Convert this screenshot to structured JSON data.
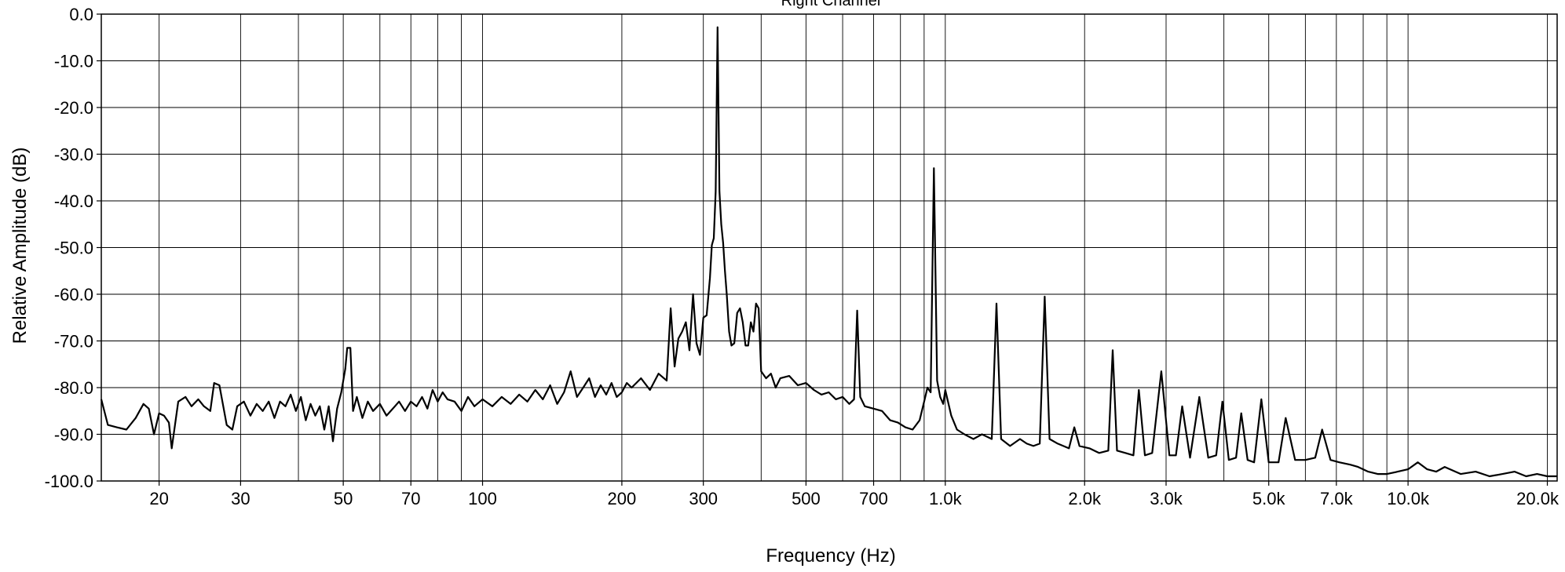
{
  "chart_data": {
    "type": "line",
    "title": "Right Channel",
    "xlabel": "Frequency (Hz)",
    "ylabel": "Relative Amplitude (dB)",
    "x_scale": "log",
    "xlim": [
      15,
      21000
    ],
    "ylim": [
      -100,
      0
    ],
    "grid": true,
    "legend": "none",
    "line_color": "#000000",
    "grid_color": "#000000",
    "y_ticks": [
      0,
      -10,
      -20,
      -30,
      -40,
      -50,
      -60,
      -70,
      -80,
      -90,
      -100
    ],
    "y_tick_labels": [
      "0.0",
      "-10.0",
      "-20.0",
      "-30.0",
      "-40.0",
      "-50.0",
      "-60.0",
      "-70.0",
      "-80.0",
      "-90.0",
      "-100.0"
    ],
    "x_labeled_ticks": [
      20,
      30,
      50,
      70,
      100,
      200,
      300,
      500,
      700,
      1000,
      2000,
      3000,
      5000,
      7000,
      10000,
      20000
    ],
    "x_tick_labels": [
      "20",
      "30",
      "50",
      "70",
      "100",
      "200",
      "300",
      "500",
      "700",
      "1.0k",
      "2.0k",
      "3.0k",
      "5.0k",
      "7.0k",
      "10.0k",
      "20.0k"
    ],
    "x_minor_gridlines": [
      40,
      60,
      80,
      90,
      400,
      600,
      800,
      900,
      4000,
      6000,
      8000,
      9000
    ],
    "series": [
      {
        "points": [
          [
            15,
            -82.5
          ],
          [
            15.5,
            -88
          ],
          [
            16.2,
            -88.5
          ],
          [
            17,
            -89
          ],
          [
            17.8,
            -86.5
          ],
          [
            18.5,
            -83.5
          ],
          [
            19,
            -84.5
          ],
          [
            19.5,
            -90
          ],
          [
            20,
            -85.5
          ],
          [
            20.5,
            -86
          ],
          [
            21,
            -87.5
          ],
          [
            21.3,
            -93
          ],
          [
            22,
            -83
          ],
          [
            22.8,
            -82
          ],
          [
            23.5,
            -84
          ],
          [
            24.3,
            -82.5
          ],
          [
            25,
            -84
          ],
          [
            25.8,
            -85
          ],
          [
            26.3,
            -79
          ],
          [
            27,
            -79.5
          ],
          [
            28,
            -88
          ],
          [
            28.8,
            -89
          ],
          [
            29.5,
            -84
          ],
          [
            30.5,
            -83
          ],
          [
            31.5,
            -86
          ],
          [
            32.5,
            -83.5
          ],
          [
            33.5,
            -85
          ],
          [
            34.5,
            -83
          ],
          [
            35.5,
            -86.5
          ],
          [
            36.5,
            -83
          ],
          [
            37.5,
            -84
          ],
          [
            38.5,
            -81.5
          ],
          [
            39.5,
            -85
          ],
          [
            40.5,
            -82
          ],
          [
            41.5,
            -87
          ],
          [
            42.5,
            -83.5
          ],
          [
            43.5,
            -86
          ],
          [
            44.5,
            -84
          ],
          [
            45.5,
            -89
          ],
          [
            46.5,
            -84
          ],
          [
            47.5,
            -91.5
          ],
          [
            48.5,
            -84.5
          ],
          [
            49.5,
            -81
          ],
          [
            50.5,
            -76
          ],
          [
            51,
            -71.5
          ],
          [
            51.8,
            -71.5
          ],
          [
            52.5,
            -85
          ],
          [
            53.5,
            -82
          ],
          [
            55,
            -86.5
          ],
          [
            56.5,
            -83
          ],
          [
            58,
            -85
          ],
          [
            60,
            -83.5
          ],
          [
            62,
            -86
          ],
          [
            64,
            -84.5
          ],
          [
            66,
            -83
          ],
          [
            68,
            -85
          ],
          [
            70,
            -83
          ],
          [
            72,
            -84
          ],
          [
            74,
            -82
          ],
          [
            76,
            -84.5
          ],
          [
            78,
            -80.5
          ],
          [
            80,
            -83
          ],
          [
            82,
            -81
          ],
          [
            84,
            -82.5
          ],
          [
            87,
            -83
          ],
          [
            90,
            -85
          ],
          [
            93,
            -82
          ],
          [
            96,
            -84
          ],
          [
            100,
            -82.5
          ],
          [
            105,
            -84
          ],
          [
            110,
            -82
          ],
          [
            115,
            -83.5
          ],
          [
            120,
            -81.5
          ],
          [
            125,
            -83
          ],
          [
            130,
            -80.5
          ],
          [
            135,
            -82.5
          ],
          [
            140,
            -79.5
          ],
          [
            145,
            -83.5
          ],
          [
            150,
            -81
          ],
          [
            155,
            -76.5
          ],
          [
            160,
            -82
          ],
          [
            165,
            -80
          ],
          [
            170,
            -78
          ],
          [
            175,
            -82
          ],
          [
            180,
            -79.5
          ],
          [
            185,
            -81.5
          ],
          [
            190,
            -79
          ],
          [
            195,
            -82
          ],
          [
            200,
            -81
          ],
          [
            205,
            -79
          ],
          [
            210,
            -80
          ],
          [
            220,
            -78
          ],
          [
            230,
            -80.5
          ],
          [
            240,
            -77
          ],
          [
            250,
            -78.5
          ],
          [
            255,
            -63
          ],
          [
            260,
            -75.5
          ],
          [
            265,
            -69.5
          ],
          [
            270,
            -68
          ],
          [
            275,
            -66
          ],
          [
            280,
            -72
          ],
          [
            285,
            -60
          ],
          [
            290,
            -70.5
          ],
          [
            295,
            -73
          ],
          [
            300,
            -65
          ],
          [
            305,
            -64.5
          ],
          [
            310,
            -56.5
          ],
          [
            313,
            -49.5
          ],
          [
            316,
            -48
          ],
          [
            319,
            -38
          ],
          [
            322,
            -2.8
          ],
          [
            325,
            -38
          ],
          [
            328,
            -45
          ],
          [
            331,
            -49
          ],
          [
            334,
            -55
          ],
          [
            337,
            -60
          ],
          [
            341,
            -68
          ],
          [
            345,
            -71
          ],
          [
            350,
            -70.5
          ],
          [
            355,
            -64
          ],
          [
            360,
            -63
          ],
          [
            365,
            -66
          ],
          [
            370,
            -71
          ],
          [
            375,
            -71
          ],
          [
            380,
            -66
          ],
          [
            385,
            -68
          ],
          [
            390,
            -62
          ],
          [
            395,
            -63
          ],
          [
            400,
            -76.5
          ],
          [
            410,
            -78
          ],
          [
            420,
            -77
          ],
          [
            430,
            -80
          ],
          [
            440,
            -78
          ],
          [
            460,
            -77.5
          ],
          [
            480,
            -79.5
          ],
          [
            500,
            -79
          ],
          [
            520,
            -80.5
          ],
          [
            540,
            -81.5
          ],
          [
            560,
            -81
          ],
          [
            580,
            -82.5
          ],
          [
            600,
            -82
          ],
          [
            620,
            -83.5
          ],
          [
            635,
            -82.5
          ],
          [
            645,
            -63.5
          ],
          [
            655,
            -82
          ],
          [
            670,
            -84
          ],
          [
            700,
            -84.5
          ],
          [
            730,
            -85
          ],
          [
            760,
            -87
          ],
          [
            790,
            -87.5
          ],
          [
            820,
            -88.5
          ],
          [
            850,
            -89
          ],
          [
            880,
            -87
          ],
          [
            900,
            -83
          ],
          [
            915,
            -80
          ],
          [
            930,
            -81
          ],
          [
            945,
            -33
          ],
          [
            960,
            -78.5
          ],
          [
            975,
            -82
          ],
          [
            990,
            -83.5
          ],
          [
            1000,
            -80.5
          ],
          [
            1030,
            -86
          ],
          [
            1060,
            -89
          ],
          [
            1100,
            -90
          ],
          [
            1150,
            -91
          ],
          [
            1200,
            -90
          ],
          [
            1260,
            -91
          ],
          [
            1290,
            -62
          ],
          [
            1320,
            -91
          ],
          [
            1380,
            -92.5
          ],
          [
            1450,
            -91
          ],
          [
            1500,
            -92
          ],
          [
            1550,
            -92.5
          ],
          [
            1600,
            -92
          ],
          [
            1640,
            -60.5
          ],
          [
            1680,
            -91
          ],
          [
            1750,
            -92
          ],
          [
            1850,
            -93
          ],
          [
            1900,
            -88.5
          ],
          [
            1950,
            -92.5
          ],
          [
            2050,
            -93
          ],
          [
            2150,
            -94
          ],
          [
            2250,
            -93.5
          ],
          [
            2300,
            -72
          ],
          [
            2350,
            -93.5
          ],
          [
            2450,
            -94
          ],
          [
            2550,
            -94.5
          ],
          [
            2620,
            -80.5
          ],
          [
            2700,
            -94.5
          ],
          [
            2800,
            -94
          ],
          [
            2930,
            -76.5
          ],
          [
            3050,
            -94.5
          ],
          [
            3150,
            -94.5
          ],
          [
            3250,
            -84
          ],
          [
            3380,
            -95
          ],
          [
            3540,
            -82
          ],
          [
            3700,
            -95
          ],
          [
            3850,
            -94.5
          ],
          [
            3970,
            -83
          ],
          [
            4100,
            -95.5
          ],
          [
            4250,
            -95
          ],
          [
            4360,
            -85.5
          ],
          [
            4500,
            -95.5
          ],
          [
            4650,
            -96
          ],
          [
            4820,
            -82.5
          ],
          [
            5000,
            -96
          ],
          [
            5250,
            -96
          ],
          [
            5440,
            -86.5
          ],
          [
            5700,
            -95.5
          ],
          [
            6000,
            -95.5
          ],
          [
            6300,
            -95
          ],
          [
            6520,
            -89
          ],
          [
            6800,
            -95.5
          ],
          [
            7100,
            -96
          ],
          [
            7500,
            -96.5
          ],
          [
            7800,
            -97
          ],
          [
            8200,
            -98
          ],
          [
            8600,
            -98.5
          ],
          [
            9000,
            -98.5
          ],
          [
            9500,
            -98
          ],
          [
            10000,
            -97.5
          ],
          [
            10500,
            -96
          ],
          [
            11000,
            -97.5
          ],
          [
            11500,
            -98
          ],
          [
            12000,
            -97
          ],
          [
            13000,
            -98.5
          ],
          [
            14000,
            -98
          ],
          [
            15000,
            -99
          ],
          [
            16000,
            -98.5
          ],
          [
            17000,
            -98
          ],
          [
            18000,
            -99
          ],
          [
            19000,
            -98.5
          ],
          [
            20000,
            -99
          ],
          [
            21000,
            -99
          ]
        ]
      }
    ]
  }
}
